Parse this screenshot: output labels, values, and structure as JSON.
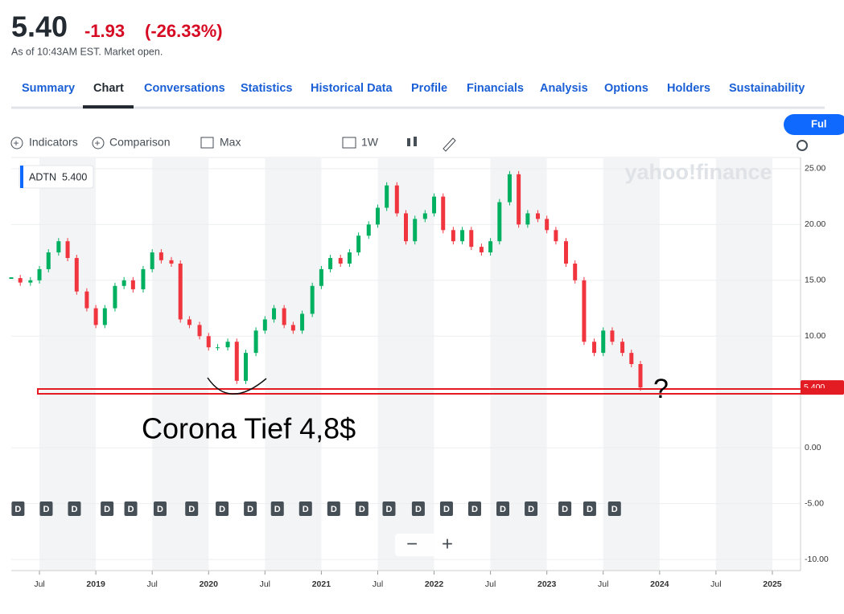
{
  "header": {
    "price": "5.40",
    "change": "-1.93",
    "change_percent": "(-26.33%)",
    "as_of": "As of 10:43AM EST. Market open."
  },
  "tabs": [
    "Summary",
    "Chart",
    "Conversations",
    "Statistics",
    "Historical Data",
    "Profile",
    "Financials",
    "Analysis",
    "Options",
    "Holders",
    "Sustainability"
  ],
  "toolbar": {
    "indicators": "Indicators",
    "comparison": "Comparison",
    "range": "Max",
    "interval": "1W",
    "fullscreen": "Ful"
  },
  "chart_data": {
    "type": "candlestick",
    "watermark": "yahoo!finance",
    "legend": {
      "symbol": "ADTN",
      "value": "5.400"
    },
    "price_tag": "5.400",
    "series": [
      {
        "name": "ADTN",
        "up_color": "#00b061",
        "down_color": "#f0353f",
        "x": [
          2018.25,
          2018.33,
          2018.42,
          2018.5,
          2018.58,
          2018.67,
          2018.75,
          2018.83,
          2018.92,
          2019.0,
          2019.08,
          2019.17,
          2019.25,
          2019.33,
          2019.42,
          2019.5,
          2019.58,
          2019.67,
          2019.75,
          2019.83,
          2019.92,
          2020.0,
          2020.08,
          2020.17,
          2020.25,
          2020.33,
          2020.42,
          2020.5,
          2020.58,
          2020.67,
          2020.75,
          2020.83,
          2020.92,
          2021.0,
          2021.08,
          2021.17,
          2021.25,
          2021.33,
          2021.42,
          2021.5,
          2021.58,
          2021.67,
          2021.75,
          2021.83,
          2021.92,
          2022.0,
          2022.08,
          2022.17,
          2022.25,
          2022.33,
          2022.42,
          2022.5,
          2022.58,
          2022.67,
          2022.75,
          2022.83,
          2022.92,
          2023.0,
          2023.08,
          2023.17,
          2023.25,
          2023.33,
          2023.42,
          2023.5,
          2023.58,
          2023.67,
          2023.75,
          2023.83
        ],
        "values": [
          15.2,
          14.8,
          15.0,
          16.0,
          17.5,
          18.5,
          17.0,
          14.0,
          12.5,
          11.0,
          12.5,
          14.5,
          15.0,
          14.2,
          16.0,
          17.5,
          16.8,
          16.5,
          11.5,
          11.0,
          10.0,
          9.0,
          9.0,
          9.5,
          6.0,
          8.5,
          10.5,
          11.5,
          12.5,
          11.0,
          10.5,
          12.0,
          14.5,
          16.0,
          17.0,
          16.5,
          17.5,
          19.0,
          20.0,
          21.5,
          23.5,
          21.0,
          18.5,
          20.5,
          21.0,
          22.5,
          19.5,
          18.5,
          19.5,
          18.0,
          17.5,
          18.5,
          22.0,
          24.5,
          20.0,
          21.0,
          20.5,
          19.5,
          18.5,
          16.5,
          15.0,
          9.5,
          8.5,
          10.5,
          9.5,
          8.5,
          7.5,
          5.4
        ]
      }
    ],
    "xlim": [
      2018.25,
      2025.25
    ],
    "ylim": [
      -11,
      26
    ],
    "xticks": [
      {
        "value": 2018.5,
        "label": "Jul"
      },
      2019,
      {
        "value": 2019.5,
        "label": "Jul"
      },
      2020,
      {
        "value": 2020.5,
        "label": "Jul"
      },
      2021,
      {
        "value": 2021.5,
        "label": "Jul"
      },
      2022,
      {
        "value": 2022.5,
        "label": "Jul"
      },
      2023,
      {
        "value": 2023.5,
        "label": "Jul"
      },
      2024,
      {
        "value": 2024.5,
        "label": "Jul"
      },
      2025
    ],
    "yticks": [
      {
        "value": 25,
        "label": "25.00"
      },
      {
        "value": 20,
        "label": "20.00"
      },
      {
        "value": 15,
        "label": "15.00"
      },
      {
        "value": 10,
        "label": "10.00"
      },
      {
        "value": 0,
        "label": "0.00"
      },
      {
        "value": -5,
        "label": "-5.00"
      },
      {
        "value": -10,
        "label": "-10.00"
      }
    ],
    "dividend_label": "D",
    "dividends": [
      2018.31,
      2018.56,
      2018.81,
      2019.1,
      2019.31,
      2019.57,
      2019.85,
      2020.12,
      2020.37,
      2020.61,
      2020.86,
      2021.11,
      2021.36,
      2021.6,
      2021.86,
      2022.11,
      2022.36,
      2022.61,
      2022.86,
      2023.16,
      2023.38,
      2023.6
    ],
    "annotations": [
      "Corona Tief 4,8$",
      "?"
    ]
  }
}
